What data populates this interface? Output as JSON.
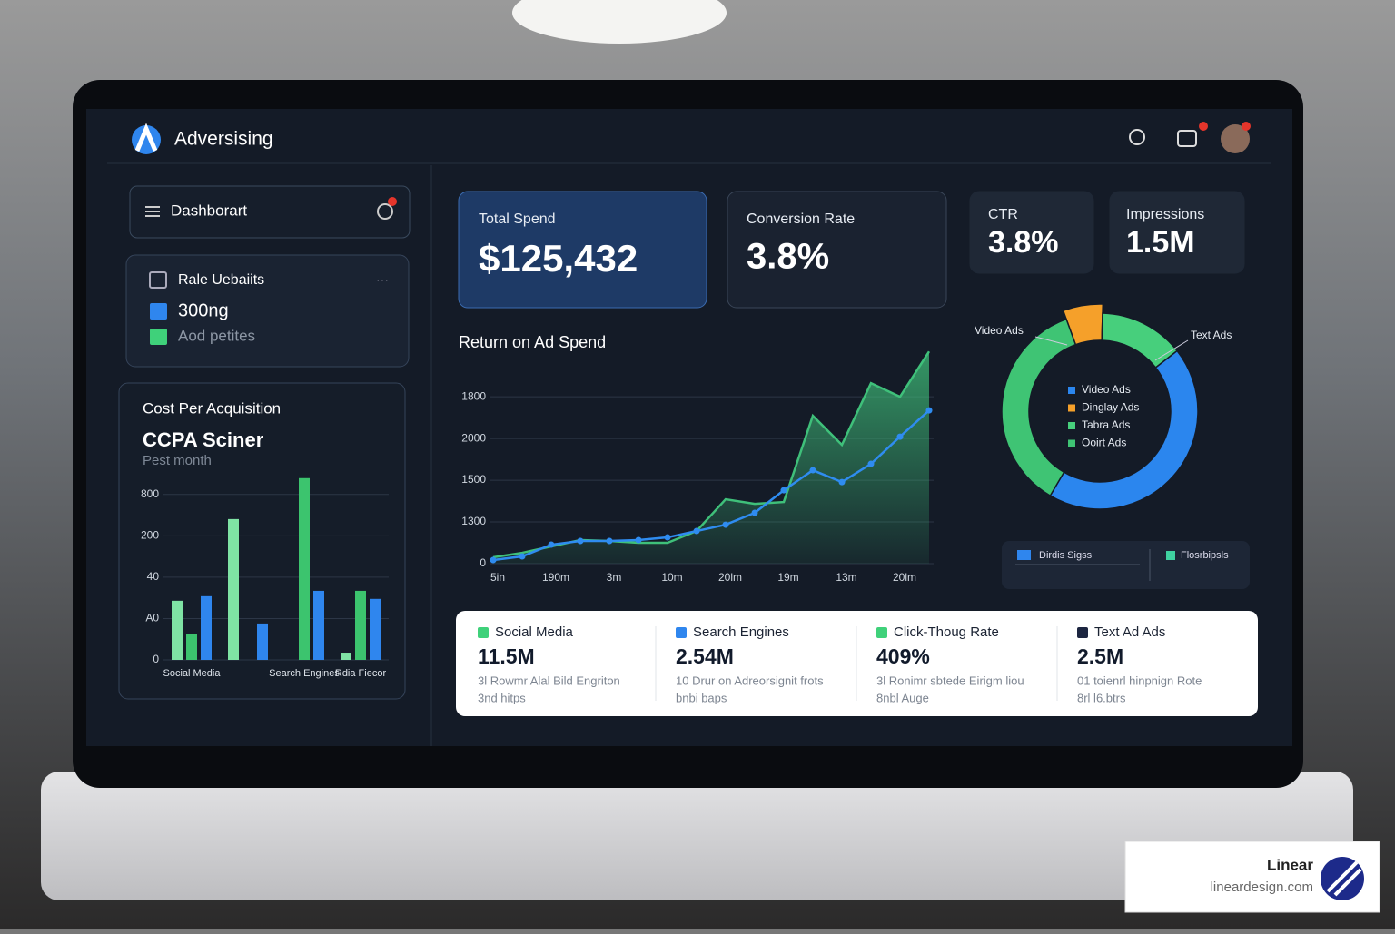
{
  "header": {
    "title": "Adversising"
  },
  "sidebar": {
    "search": "Dashborart",
    "card": {
      "title": "Rale Uebaiits",
      "items": [
        "300ng",
        "Aod petites"
      ]
    }
  },
  "kpis": [
    {
      "label": "Total Spend",
      "value": "$125,432"
    },
    {
      "label": "Conversion Rate",
      "value": "3.8%"
    },
    {
      "label": "CTR",
      "value": "3.8%"
    },
    {
      "label": "Impressions",
      "value": "1.5M"
    }
  ],
  "chart_data": [
    {
      "type": "bar",
      "title": "Cost Per Acquisition",
      "heading": "CCPA Sciner",
      "subtitle": "Pest month",
      "categories": [
        "Social Media",
        null,
        "Search Engines",
        "Rdia Fiecor"
      ],
      "series": [
        {
          "color": "#7fe3a4",
          "values": [
            286,
            681,
            null,
            35
          ]
        },
        {
          "color": "#3cc46e",
          "values": [
            123,
            null,
            879,
            334
          ]
        },
        {
          "color": "#2f86ee",
          "values": [
            308,
            176,
            334,
            295
          ]
        }
      ],
      "ylim": [
        0,
        900
      ],
      "yticks": [
        0,
        {
          "value": 200,
          "label": "A0"
        },
        {
          "value": 400,
          "label": "40"
        },
        {
          "value": 600,
          "label": "200"
        },
        800
      ],
      "grid": true
    },
    {
      "type": "line",
      "title": "Return on Ad Spend",
      "categories": [
        "5in",
        null,
        "190m",
        null,
        "3m",
        null,
        "10m",
        null,
        "20lm",
        null,
        "19m",
        null,
        "13m",
        null,
        "20lm",
        null
      ],
      "series": [
        {
          "color": "#3fc07a",
          "area": true,
          "values": [
            76,
            130,
            207,
            283,
            272,
            250,
            250,
            391,
            772,
            717,
            739,
            1772,
            1424,
            2163,
            2000,
            2543
          ]
        },
        {
          "color": "#2f8cf0",
          "area": false,
          "values": [
            43,
            87,
            228,
            272,
            272,
            283,
            315,
            391,
            467,
            609,
            880,
            1120,
            978,
            1196,
            1522,
            1837
          ]
        }
      ],
      "ylim": [
        0,
        2600
      ],
      "yticks": [
        0,
        {
          "value": 500,
          "label": "1300"
        },
        {
          "value": 1000,
          "label": "1500"
        },
        {
          "value": 1500,
          "label": "2000"
        },
        {
          "value": 2000,
          "label": "1800"
        }
      ],
      "grid": true
    },
    {
      "type": "pie",
      "donut": true,
      "categories": [
        "Video Ads",
        "Dinglay Ads",
        "Tabra Ads",
        "Ooirt Ads"
      ],
      "values": [
        44,
        6,
        14,
        36
      ],
      "colors": [
        "#2b86ee",
        "#f5a02a",
        "#47cf7c",
        "#3fc474"
      ],
      "annotations": [
        "Video Ads",
        "Text Ads"
      ]
    }
  ],
  "donut_box": {
    "items": [
      "Dirdis Sigss",
      "Flosrbipsls"
    ]
  },
  "metrics": [
    {
      "title": "Social Media",
      "value": "11.5M",
      "color": "#3fd17a",
      "lines": [
        "3l Rowmr Alal Bild Engriton",
        "3nd hitps"
      ]
    },
    {
      "title": "Search Engines",
      "value": "2.54M",
      "color": "#2f86ee",
      "lines": [
        "10 Drur on Adreorsignit frots",
        "bnbi baps"
      ]
    },
    {
      "title": "Click-Thoug Rate",
      "value": "409%",
      "color": "#3fd17a",
      "lines": [
        "3l Ronimr sbtede Eirigm liou",
        "8nbl Auge"
      ]
    },
    {
      "title": "Text Ad Ads",
      "value": "2.5M",
      "color": "#1c2540",
      "lines": [
        "01 toienrl hinpnign Rote",
        "8rl l6.btrs"
      ]
    }
  ],
  "watermark": {
    "brand": "Linear",
    "url": "lineardesign.com"
  }
}
